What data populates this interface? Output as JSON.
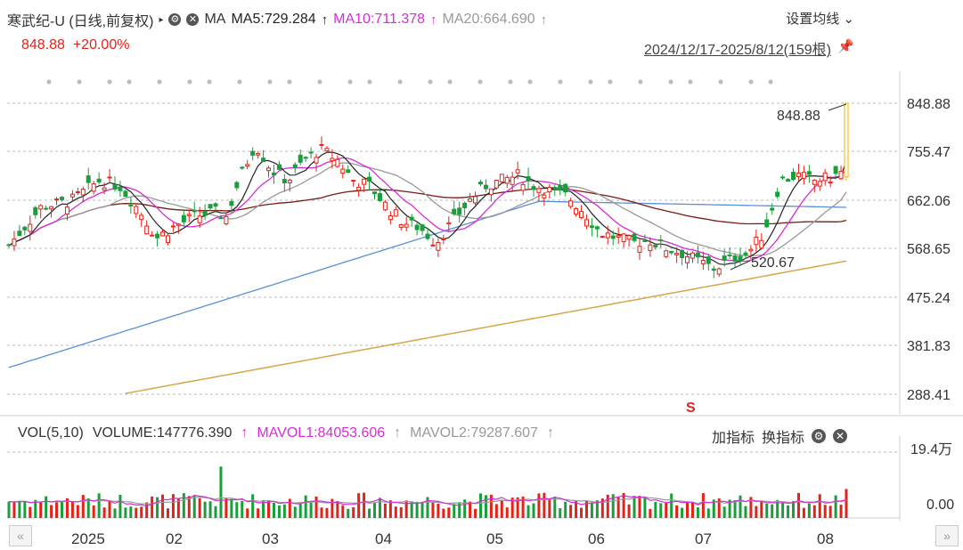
{
  "header": {
    "title": "寒武纪-U (日线,前复权)",
    "ma_label": "MA",
    "ma5": "MA5:729.284",
    "ma10": "MA10:711.378",
    "ma20": "MA20:664.690",
    "up_arrow": "↑",
    "settings": "设置均线",
    "price": "848.88",
    "change": "+20.00%",
    "range": "2024/12/17-2025/8/12(159根)"
  },
  "price_axis": [
    "848.88",
    "755.47",
    "662.06",
    "568.65",
    "475.24",
    "381.83",
    "288.41"
  ],
  "annotations": {
    "high": "848.88",
    "low": "520.67"
  },
  "volume": {
    "label": "VOL(5,10)",
    "volume": "VOLUME:147776.390",
    "mavol1": "MAVOL1:84053.606",
    "mavol2": "MAVOL2:79287.607",
    "axis_top": "19.4万",
    "axis_bottom": "0.00"
  },
  "tools": {
    "add": "加指标",
    "switch": "换指标"
  },
  "months": [
    "2025",
    "02",
    "03",
    "04",
    "05",
    "06",
    "07",
    "08"
  ],
  "colors": {
    "up": "#e2231a",
    "down": "#1a9e3c",
    "ma5": "#222222",
    "ma10": "#d62dd6",
    "ma20": "#999999",
    "ma60": "#7a1a10",
    "ma120": "#5b8fd6",
    "ma250": "#d6a64a"
  }
}
